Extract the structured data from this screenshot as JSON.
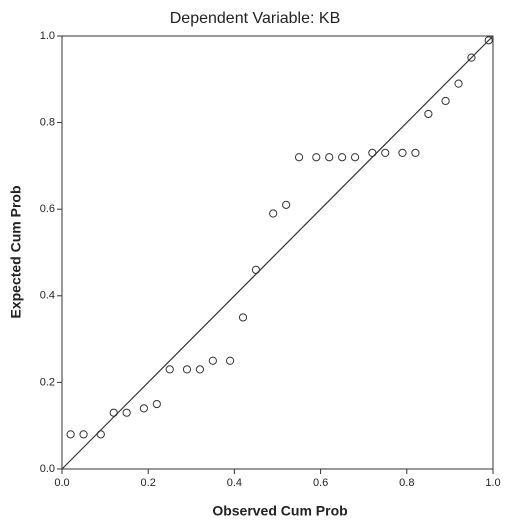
{
  "chart_data": {
    "type": "scatter",
    "title": "Dependent Variable: KB",
    "x_label": "Observed Cum Prob",
    "y_label": "Expected Cum Prob",
    "x": [
      0.02,
      0.05,
      0.09,
      0.12,
      0.15,
      0.19,
      0.22,
      0.25,
      0.29,
      0.32,
      0.35,
      0.39,
      0.42,
      0.45,
      0.49,
      0.52,
      0.55,
      0.59,
      0.62,
      0.65,
      0.68,
      0.72,
      0.75,
      0.79,
      0.82,
      0.85,
      0.89,
      0.92,
      0.95,
      0.99
    ],
    "values": [
      0.08,
      0.08,
      0.08,
      0.13,
      0.13,
      0.14,
      0.15,
      0.23,
      0.23,
      0.23,
      0.25,
      0.25,
      0.35,
      0.46,
      0.59,
      0.61,
      0.72,
      0.72,
      0.72,
      0.72,
      0.72,
      0.73,
      0.73,
      0.73,
      0.73,
      0.82,
      0.85,
      0.89,
      0.95,
      0.99
    ],
    "color": "#333333",
    "xlim": [
      0,
      1
    ],
    "ylim": [
      0,
      1
    ],
    "xticks": [
      {
        "value": 0,
        "label": "0.0"
      },
      0.2,
      0.4,
      0.6,
      0.8,
      {
        "value": 1,
        "label": "1.0"
      }
    ],
    "yticks": [
      {
        "value": 0,
        "label": "0.0"
      },
      0.2,
      0.4,
      0.6,
      0.8,
      {
        "value": 1,
        "label": "1.0"
      }
    ],
    "reference_line": true
  }
}
